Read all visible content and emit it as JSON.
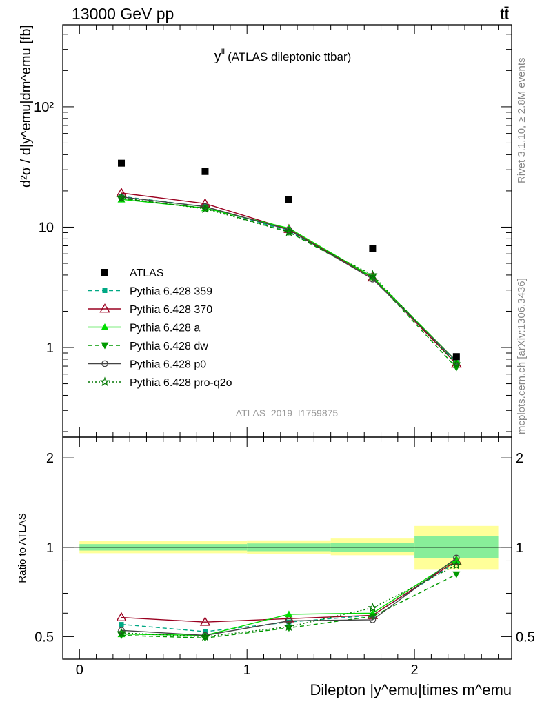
{
  "header": {
    "left": "13000 GeV pp",
    "right": "tt̄"
  },
  "side_labels": {
    "rivet": "Rivet 3.1.10, ≥ 2.8M events",
    "mcplots": "mcplots.cern.ch [arXiv:1306.3436]"
  },
  "chart_data": {
    "type": "scatter",
    "title": "y^ll (ATLAS dileptonic ttbar)",
    "title_main": "y",
    "title_sup": "ll",
    "title_rest": "(ATLAS dileptonic ttbar)",
    "analysis_id": "ATLAS_2019_I1759875",
    "xlabel": "Dilepton |y^emu|times m^emu",
    "ylabel": "d²σ / d|y^emu|dm^emu [fb]",
    "ratio_ylabel": "Ratio to ATLAS",
    "x_ticks": [
      "0",
      "1",
      "2"
    ],
    "y_ticks_main": [
      "1",
      "10",
      "10²"
    ],
    "y_ticks_ratio": [
      "0.5",
      "1",
      "2"
    ],
    "xlim": [
      -0.1,
      2.58
    ],
    "ylim_main": [
      0.18,
      480
    ],
    "ylim_ratio": [
      0.42,
      2.35
    ],
    "yscale": "log",
    "legend_position": "center-left",
    "x": [
      0.25,
      0.75,
      1.25,
      1.75,
      2.25
    ],
    "bin_edges": [
      0,
      0.5,
      1.0,
      1.5,
      2.0,
      2.5
    ],
    "data": {
      "name": "ATLAS",
      "values": [
        34,
        29,
        17,
        6.6,
        0.84
      ]
    },
    "ratio_bands": {
      "inner": [
        [
          0.975,
          1.025
        ],
        [
          0.975,
          1.025
        ],
        [
          0.97,
          1.03
        ],
        [
          0.965,
          1.035
        ],
        [
          0.92,
          1.09
        ]
      ],
      "outer": [
        [
          0.955,
          1.05
        ],
        [
          0.955,
          1.05
        ],
        [
          0.95,
          1.055
        ],
        [
          0.94,
          1.07
        ],
        [
          0.84,
          1.18
        ]
      ]
    },
    "series": [
      {
        "name": "Pythia 6.428 359",
        "color": "#00a884",
        "dash": "6,4",
        "marker": "square",
        "values": [
          18.0,
          14.8,
          9.3,
          3.85,
          0.75
        ],
        "ratio": [
          0.55,
          0.52,
          0.56,
          0.59,
          0.89
        ]
      },
      {
        "name": "Pythia 6.428 370",
        "color": "#9a0020",
        "dash": "",
        "marker": "triangle-open",
        "values": [
          19.2,
          15.7,
          9.6,
          3.8,
          0.73
        ],
        "ratio": [
          0.58,
          0.56,
          0.575,
          0.59,
          0.9
        ]
      },
      {
        "name": "Pythia 6.428 a",
        "color": "#00dd00",
        "dash": "",
        "marker": "triangle",
        "values": [
          17.0,
          14.4,
          9.8,
          3.85,
          0.77
        ],
        "ratio": [
          0.51,
          0.505,
          0.595,
          0.6,
          0.91
        ]
      },
      {
        "name": "Pythia 6.428 dw",
        "color": "#009900",
        "dash": "6,4",
        "marker": "triangle-down",
        "values": [
          17.3,
          14.4,
          9.1,
          3.8,
          0.68
        ],
        "ratio": [
          0.505,
          0.495,
          0.535,
          0.585,
          0.81
        ]
      },
      {
        "name": "Pythia 6.428 p0",
        "color": "#444444",
        "dash": "",
        "marker": "circle-open",
        "values": [
          17.8,
          14.8,
          9.5,
          3.7,
          0.77
        ],
        "ratio": [
          0.525,
          0.505,
          0.565,
          0.57,
          0.92
        ]
      },
      {
        "name": "Pythia 6.428 pro-q2o",
        "color": "#007700",
        "dash": "2,3",
        "marker": "star-open",
        "values": [
          17.5,
          14.2,
          9.1,
          4.0,
          0.73
        ],
        "ratio": [
          0.515,
          0.5,
          0.54,
          0.625,
          0.87
        ]
      }
    ]
  }
}
